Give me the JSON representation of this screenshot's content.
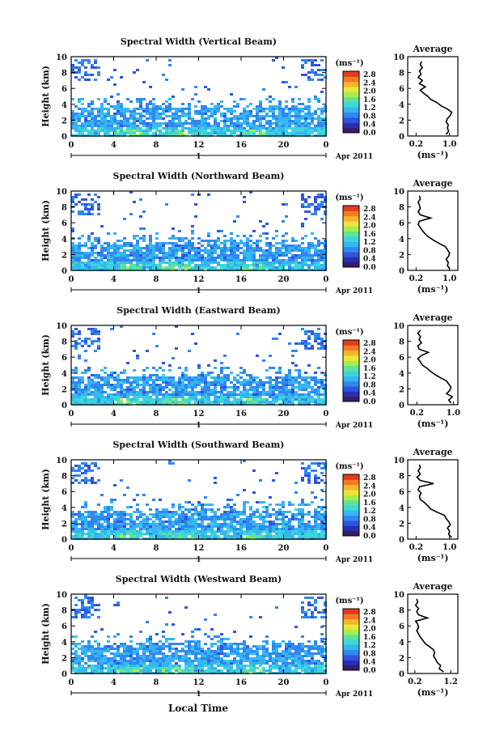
{
  "x_axis_label": "Local Time",
  "date_label": "Apr 2011",
  "day_label": "1",
  "y_axis_label": "Height (km)",
  "avg_title": "Average",
  "avg_unit": "(ms⁻¹)",
  "colorbar": {
    "unit": "(ms⁻¹)",
    "ticks": [
      "2.8",
      "2.4",
      "2.0",
      "1.6",
      "1.2",
      "0.8",
      "0.4",
      "0.0"
    ],
    "colors": [
      "#3a1a6a",
      "#2a2fb0",
      "#2f55e0",
      "#2f88f0",
      "#35b6f0",
      "#3cd6d8",
      "#5ee39a",
      "#a7ee4c",
      "#e8e838",
      "#f7b52c",
      "#f47a24",
      "#e43a1c"
    ]
  },
  "chart_data": [
    {
      "type": "heatmap",
      "title": "Spectral Width (Vertical Beam)",
      "xlabel": "Local Time",
      "ylabel": "Height (km)",
      "x_ticks": [
        "0",
        "4",
        "8",
        "12",
        "16",
        "20",
        "0"
      ],
      "y_ticks": [
        "0",
        "2",
        "4",
        "6",
        "8",
        "10"
      ],
      "xlim": [
        0,
        24
      ],
      "ylim": [
        0,
        10
      ],
      "clim": [
        0.0,
        2.8
      ],
      "avg_profile": {
        "x_ticks": [
          "0.2",
          "1.0"
        ],
        "xlim": [
          0.0,
          1.2
        ],
        "height": [
          0.2,
          0.6,
          1.0,
          1.4,
          1.8,
          2.2,
          2.6,
          3.0,
          3.4,
          3.8,
          4.2,
          4.6,
          5.0,
          5.4,
          5.8,
          6.2,
          6.6,
          7.0,
          7.4,
          7.8,
          8.2,
          8.6,
          9.0,
          9.4
        ],
        "width": [
          0.92,
          0.98,
          0.95,
          0.97,
          0.92,
          0.95,
          1.02,
          1.05,
          0.95,
          0.8,
          0.7,
          0.55,
          0.48,
          0.38,
          0.3,
          0.42,
          0.28,
          0.35,
          0.25,
          0.32,
          0.28,
          0.35,
          0.3,
          0.33
        ]
      }
    },
    {
      "type": "heatmap",
      "title": "Spectral Width (Northward Beam)",
      "xlabel": "Local Time",
      "ylabel": "Height (km)",
      "x_ticks": [
        "0",
        "4",
        "8",
        "12",
        "16",
        "20",
        "0"
      ],
      "y_ticks": [
        "0",
        "2",
        "4",
        "6",
        "8",
        "10"
      ],
      "xlim": [
        0,
        24
      ],
      "ylim": [
        0,
        10
      ],
      "clim": [
        0.0,
        2.8
      ],
      "avg_profile": {
        "x_ticks": [
          "0.2",
          "1.0"
        ],
        "xlim": [
          0.0,
          1.2
        ],
        "height": [
          0.2,
          0.6,
          1.0,
          1.4,
          1.8,
          2.2,
          2.6,
          3.0,
          3.4,
          3.8,
          4.2,
          4.6,
          5.0,
          5.4,
          5.8,
          6.2,
          6.6,
          7.0,
          7.4,
          7.8,
          8.2,
          8.6,
          9.0,
          9.4
        ],
        "width": [
          1.0,
          0.95,
          0.97,
          0.92,
          0.98,
          1.0,
          0.95,
          0.9,
          0.75,
          0.62,
          0.5,
          0.42,
          0.35,
          0.3,
          0.25,
          0.28,
          0.55,
          0.3,
          0.25,
          0.3,
          0.28,
          0.25,
          0.3,
          0.28
        ]
      }
    },
    {
      "type": "heatmap",
      "title": "Spectral Width (Eastward Beam)",
      "xlabel": "Local Time",
      "ylabel": "Height (km)",
      "x_ticks": [
        "0",
        "4",
        "8",
        "12",
        "16",
        "20",
        "0"
      ],
      "y_ticks": [
        "0",
        "2",
        "4",
        "6",
        "8",
        "10"
      ],
      "xlim": [
        0,
        24
      ],
      "ylim": [
        0,
        10
      ],
      "clim": [
        0.0,
        2.8
      ],
      "avg_profile": {
        "x_ticks": [
          "0.2",
          "1.0"
        ],
        "xlim": [
          0.0,
          1.1
        ],
        "height": [
          0.2,
          0.6,
          1.0,
          1.4,
          1.8,
          2.2,
          2.6,
          3.0,
          3.4,
          3.8,
          4.2,
          4.6,
          5.0,
          5.4,
          5.8,
          6.2,
          6.6,
          7.0,
          7.4,
          7.8,
          8.2,
          8.6,
          9.0,
          9.4
        ],
        "width": [
          0.95,
          0.9,
          0.98,
          0.85,
          0.92,
          0.95,
          0.9,
          0.85,
          0.72,
          0.6,
          0.5,
          0.42,
          0.32,
          0.28,
          0.22,
          0.3,
          0.45,
          0.25,
          0.22,
          0.3,
          0.25,
          0.28,
          0.22,
          0.28
        ]
      }
    },
    {
      "type": "heatmap",
      "title": "Spectral Width (Southward Beam)",
      "xlabel": "Local Time",
      "ylabel": "Height (km)",
      "x_ticks": [
        "0",
        "4",
        "8",
        "12",
        "16",
        "20",
        "0"
      ],
      "y_ticks": [
        "0",
        "2",
        "4",
        "6",
        "8",
        "10"
      ],
      "xlim": [
        0,
        24
      ],
      "ylim": [
        0,
        10
      ],
      "clim": [
        0.0,
        2.8
      ],
      "avg_profile": {
        "x_ticks": [
          "0.2",
          "1.0"
        ],
        "xlim": [
          0.0,
          1.2
        ],
        "height": [
          0.2,
          0.6,
          1.0,
          1.4,
          1.8,
          2.2,
          2.6,
          3.0,
          3.4,
          3.8,
          4.2,
          4.6,
          5.0,
          5.4,
          5.8,
          6.2,
          6.6,
          7.0,
          7.4,
          7.8,
          8.2,
          8.6,
          9.0,
          9.4
        ],
        "width": [
          1.05,
          0.98,
          1.0,
          0.95,
          1.02,
          0.98,
          0.92,
          0.88,
          0.7,
          0.55,
          0.48,
          0.4,
          0.3,
          0.28,
          0.32,
          0.25,
          0.28,
          0.62,
          0.3,
          0.22,
          0.3,
          0.25,
          0.3,
          0.28
        ]
      }
    },
    {
      "type": "heatmap",
      "title": "Spectral Width (Westward Beam)",
      "xlabel": "Local Time",
      "ylabel": "Height (km)",
      "x_ticks": [
        "0",
        "4",
        "8",
        "12",
        "16",
        "20",
        "0"
      ],
      "y_ticks": [
        "0",
        "2",
        "4",
        "6",
        "8",
        "10"
      ],
      "xlim": [
        0,
        24
      ],
      "ylim": [
        0,
        10
      ],
      "clim": [
        0.0,
        2.8
      ],
      "avg_profile": {
        "x_ticks": [
          "0.2",
          "1.2"
        ],
        "xlim": [
          0.0,
          1.4
        ],
        "height": [
          0.2,
          0.6,
          1.0,
          1.4,
          1.8,
          2.2,
          2.6,
          3.0,
          3.4,
          3.8,
          4.2,
          4.6,
          5.0,
          5.4,
          5.8,
          6.2,
          6.6,
          7.0,
          7.4,
          7.8,
          8.2,
          8.6,
          9.0,
          9.4
        ],
        "width": [
          1.0,
          0.88,
          0.92,
          0.82,
          0.78,
          0.72,
          0.75,
          0.72,
          0.6,
          0.48,
          0.42,
          0.35,
          0.3,
          0.25,
          0.3,
          0.28,
          0.22,
          0.55,
          0.3,
          0.25,
          0.3,
          0.22,
          0.28,
          0.25
        ]
      }
    }
  ]
}
